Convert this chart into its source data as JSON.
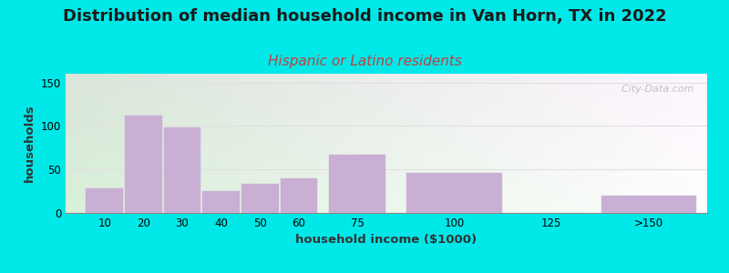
{
  "title": "Distribution of median household income in Van Horn, TX in 2022",
  "subtitle": "Hispanic or Latino residents",
  "xlabel": "household income ($1000)",
  "ylabel": "households",
  "bar_centers": [
    10,
    20,
    30,
    40,
    50,
    60,
    75,
    100,
    150
  ],
  "bar_widths": [
    10,
    10,
    10,
    10,
    10,
    10,
    15,
    25,
    25
  ],
  "bar_values": [
    28,
    112,
    98,
    25,
    33,
    40,
    67,
    46,
    20
  ],
  "xtick_positions": [
    10,
    20,
    30,
    40,
    50,
    60,
    75,
    100,
    125,
    150
  ],
  "xtick_labels": [
    "10",
    "20",
    "30",
    "40",
    "50",
    "60",
    "75",
    "100",
    "125",
    ">150"
  ],
  "bar_color": "#c9afd4",
  "bar_edgecolor": "#c9afd4",
  "ylim": [
    0,
    160
  ],
  "xlim": [
    0,
    165
  ],
  "yticks": [
    0,
    50,
    100,
    150
  ],
  "bg_color": "#00e8e8",
  "plot_bg_color_topleft": "#d8eecc",
  "plot_bg_color_topright": "#f5f5f5",
  "plot_bg_color_bottomleft": "#e8f5e2",
  "plot_bg_color_bottomright": "#ffffff",
  "title_fontsize": 13,
  "title_color": "#1a1a1a",
  "subtitle_fontsize": 11,
  "subtitle_color": "#c04040",
  "axis_label_color": "#333333",
  "watermark": "  City-Data.com",
  "watermark_color": "#b0b8c0",
  "grid_color": "#e0e0e0"
}
